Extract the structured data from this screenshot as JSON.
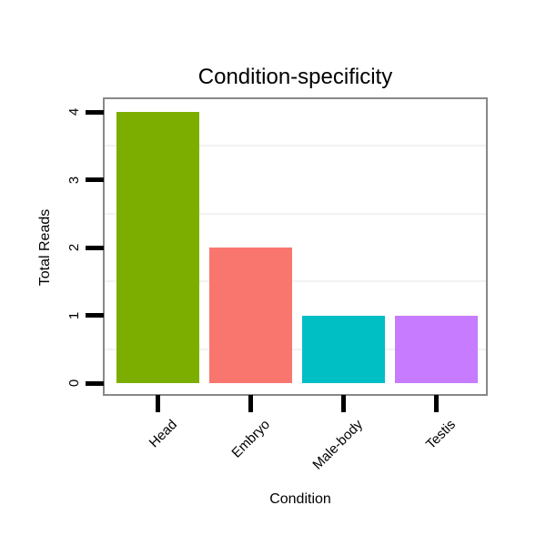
{
  "chart_data": {
    "type": "bar",
    "title": "Condition-specificity",
    "xlabel": "Condition",
    "ylabel": "Total Reads",
    "categories": [
      "Head",
      "Embryo",
      "Male-body",
      "Testis"
    ],
    "values": [
      4,
      2,
      1,
      1
    ],
    "bar_colors": [
      "#7CAE00",
      "#F8766D",
      "#00BFC4",
      "#C77CFF"
    ],
    "ylim": [
      0,
      4
    ],
    "yticks": [
      0,
      1,
      2,
      3,
      4
    ],
    "ytick_labels": [
      "0",
      "1",
      "2",
      "3",
      "4"
    ],
    "minor_gridlines": [
      0.5,
      1.5,
      2.5,
      3.5
    ],
    "legend": "none",
    "grid": "minor-only",
    "background": "#FFFFFF",
    "plot_border_color": "#888888",
    "gridline_color": "#F2F2F2",
    "tick_color": "#000000",
    "text_color": "#000000"
  }
}
